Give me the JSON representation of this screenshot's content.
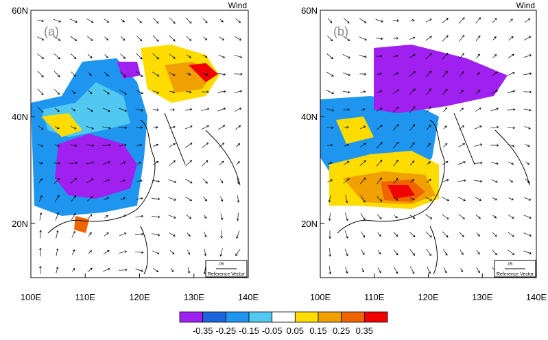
{
  "panels": [
    {
      "label": "(a)",
      "variable": "Wind",
      "reference": {
        "magnitude": ".05",
        "label": "Reference Vector"
      }
    },
    {
      "label": "(b)",
      "variable": "Wind",
      "reference": {
        "magnitude": ".05",
        "label": "Reference Vector"
      }
    }
  ],
  "lat_ticks": [
    "60N",
    "40N",
    "20N"
  ],
  "lon_ticks": [
    "100E",
    "110E",
    "120E",
    "130E",
    "140E"
  ],
  "colorbar": {
    "colors": [
      "#a020f0",
      "#1e64dc",
      "#1e96f0",
      "#50c8f0",
      "#ffffff",
      "#ffdc00",
      "#f0a000",
      "#f06400",
      "#f00000"
    ],
    "labels": [
      "-0.35",
      "-0.25",
      "-0.15",
      "-0.05",
      "0.05",
      "0.15",
      "0.25",
      "0.35"
    ]
  }
}
